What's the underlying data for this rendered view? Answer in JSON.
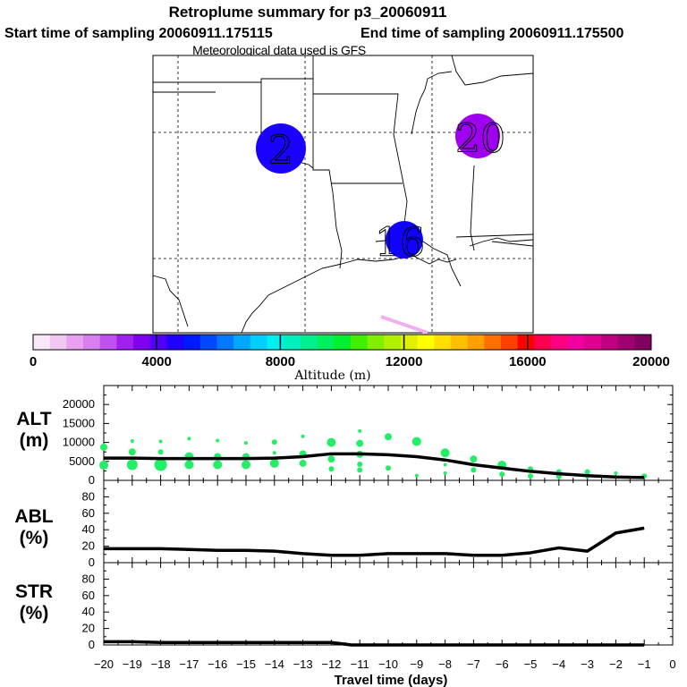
{
  "title": {
    "line1": "Retroplume summary for p3_20060911",
    "line2a": "Start time of sampling 20060911.175115",
    "line2b": "End time of sampling 20060911.175500",
    "line3": "Meteorological data used is GFS"
  },
  "map": {
    "clusters": [
      {
        "label": "2",
        "color": "#1a00ff"
      },
      {
        "label": "20",
        "color": "#a000f0"
      },
      {
        "label": "16",
        "color": "#1000ff"
      }
    ]
  },
  "colorbar": {
    "ticks": [
      "0",
      "4000",
      "8000",
      "12000",
      "16000",
      "20000"
    ],
    "label": "Altitude (m)",
    "colors": [
      "#f8e8f8",
      "#f0c8f0",
      "#e8a0f0",
      "#d880f0",
      "#c050f0",
      "#a020f0",
      "#8000f0",
      "#5000f8",
      "#2000ff",
      "#0018ff",
      "#0048ff",
      "#0078ff",
      "#00a8ff",
      "#00d0ff",
      "#00f0f0",
      "#00f0c0",
      "#00f090",
      "#00f060",
      "#00f030",
      "#40f000",
      "#80f000",
      "#b0f000",
      "#e0f000",
      "#ffff00",
      "#ffe000",
      "#ffc000",
      "#ffa000",
      "#ff7000",
      "#ff4000",
      "#ff0000",
      "#ff0050",
      "#ff0080",
      "#f000a0",
      "#e00090",
      "#c00080",
      "#a00070",
      "#800060"
    ]
  },
  "chart_data": [
    {
      "type": "line",
      "panel": "ALT",
      "ylabel_line1": "ALT",
      "ylabel_line2": "(m)",
      "ylim": [
        0,
        20000
      ],
      "yticks": [
        "0",
        "5000",
        "10000",
        "15000",
        "20000"
      ],
      "x": [
        -20,
        -19,
        -18,
        -17,
        -16,
        -15,
        -14,
        -13,
        -12,
        -11,
        -10,
        -9,
        -8,
        -7,
        -6,
        -5,
        -4,
        -3,
        -2,
        -1
      ],
      "values": [
        4700,
        4700,
        4600,
        4600,
        4600,
        4600,
        4700,
        5000,
        5600,
        5600,
        5400,
        5000,
        4300,
        3300,
        2600,
        1900,
        1400,
        1000,
        700,
        600
      ],
      "dots": [
        {
          "x": -20,
          "y": 7000,
          "r": 4
        },
        {
          "x": -20,
          "y": 3200,
          "r": 5
        },
        {
          "x": -19,
          "y": 8300,
          "r": 2
        },
        {
          "x": -19,
          "y": 6000,
          "r": 4
        },
        {
          "x": -19,
          "y": 3300,
          "r": 6
        },
        {
          "x": -18,
          "y": 8200,
          "r": 2
        },
        {
          "x": -18,
          "y": 6000,
          "r": 3
        },
        {
          "x": -18,
          "y": 3300,
          "r": 7
        },
        {
          "x": -17,
          "y": 8800,
          "r": 2
        },
        {
          "x": -17,
          "y": 5000,
          "r": 5
        },
        {
          "x": -17,
          "y": 3300,
          "r": 5
        },
        {
          "x": -16,
          "y": 8400,
          "r": 2
        },
        {
          "x": -16,
          "y": 5000,
          "r": 4
        },
        {
          "x": -16,
          "y": 3300,
          "r": 5
        },
        {
          "x": -15,
          "y": 7900,
          "r": 2
        },
        {
          "x": -15,
          "y": 5000,
          "r": 4
        },
        {
          "x": -15,
          "y": 3300,
          "r": 5
        },
        {
          "x": -14,
          "y": 8100,
          "r": 3
        },
        {
          "x": -14,
          "y": 5800,
          "r": 2
        },
        {
          "x": -14,
          "y": 3600,
          "r": 5
        },
        {
          "x": -13,
          "y": 9300,
          "r": 2
        },
        {
          "x": -13,
          "y": 5600,
          "r": 4
        },
        {
          "x": -13,
          "y": 3600,
          "r": 4
        },
        {
          "x": -12,
          "y": 8000,
          "r": 5
        },
        {
          "x": -12,
          "y": 4500,
          "r": 4
        },
        {
          "x": -12,
          "y": 2400,
          "r": 3
        },
        {
          "x": -11,
          "y": 10400,
          "r": 2
        },
        {
          "x": -11,
          "y": 7800,
          "r": 4
        },
        {
          "x": -11,
          "y": 5500,
          "r": 4
        },
        {
          "x": -11,
          "y": 3400,
          "r": 3
        },
        {
          "x": -11,
          "y": 2200,
          "r": 3
        },
        {
          "x": -10,
          "y": 9200,
          "r": 4
        },
        {
          "x": -10,
          "y": 2600,
          "r": 3
        },
        {
          "x": -9,
          "y": 8200,
          "r": 5
        },
        {
          "x": -9,
          "y": 1000,
          "r": 2
        },
        {
          "x": -8,
          "y": 5800,
          "r": 5
        },
        {
          "x": -8,
          "y": 3300,
          "r": 2
        },
        {
          "x": -8,
          "y": 1500,
          "r": 2
        },
        {
          "x": -7,
          "y": 4500,
          "r": 4
        },
        {
          "x": -7,
          "y": 2200,
          "r": 3
        },
        {
          "x": -6,
          "y": 3200,
          "r": 5
        },
        {
          "x": -6,
          "y": 1300,
          "r": 3
        },
        {
          "x": -5,
          "y": 2400,
          "r": 3
        },
        {
          "x": -5,
          "y": 900,
          "r": 3
        },
        {
          "x": -4,
          "y": 1800,
          "r": 3
        },
        {
          "x": -4,
          "y": 800,
          "r": 3
        },
        {
          "x": -3,
          "y": 1800,
          "r": 3
        },
        {
          "x": -3,
          "y": 700,
          "r": 2
        },
        {
          "x": -2,
          "y": 1500,
          "r": 2
        },
        {
          "x": -1,
          "y": 900,
          "r": 3
        }
      ]
    },
    {
      "type": "line",
      "panel": "ABL",
      "ylabel_line1": "ABL",
      "ylabel_line2": "(%)",
      "ylim": [
        0,
        100
      ],
      "yticks": [
        "0",
        "20",
        "40",
        "60",
        "80"
      ],
      "x": [
        -20,
        -19,
        -18,
        -17,
        -16,
        -15,
        -14,
        -13,
        -12,
        -11,
        -10,
        -9,
        -8,
        -7,
        -6,
        -5,
        -4,
        -3,
        -2,
        -1
      ],
      "values": [
        17,
        17,
        17,
        16,
        15,
        15,
        14,
        11,
        9,
        9,
        11,
        11,
        11,
        9,
        9,
        12,
        18,
        14,
        36,
        42
      ]
    },
    {
      "type": "line",
      "panel": "STR",
      "ylabel_line1": "STR",
      "ylabel_line2": "(%)",
      "ylim": [
        0,
        100
      ],
      "yticks": [
        "0",
        "20",
        "40",
        "60",
        "80"
      ],
      "x": [
        -20,
        -19,
        -18,
        -17,
        -16,
        -15,
        -14,
        -13,
        -12,
        -11.3,
        -11,
        -10,
        -9,
        -8,
        -7,
        -6,
        -5,
        -4,
        -3,
        -2,
        -1
      ],
      "values": [
        4,
        4,
        3,
        3,
        3,
        3,
        3,
        3,
        3,
        0,
        0,
        0,
        0,
        0,
        0,
        0,
        0,
        0,
        0,
        0,
        0
      ]
    }
  ],
  "xaxis": {
    "title": "Travel time (days)",
    "ticks": [
      "−20",
      "−19",
      "−18",
      "−17",
      "−16",
      "−15",
      "−14",
      "−13",
      "−12",
      "−11",
      "−10",
      "−9",
      "−8",
      "−7",
      "−6",
      "−5",
      "−4",
      "−3",
      "−2",
      "−1",
      "0"
    ],
    "xlim": [
      -20,
      0
    ]
  }
}
